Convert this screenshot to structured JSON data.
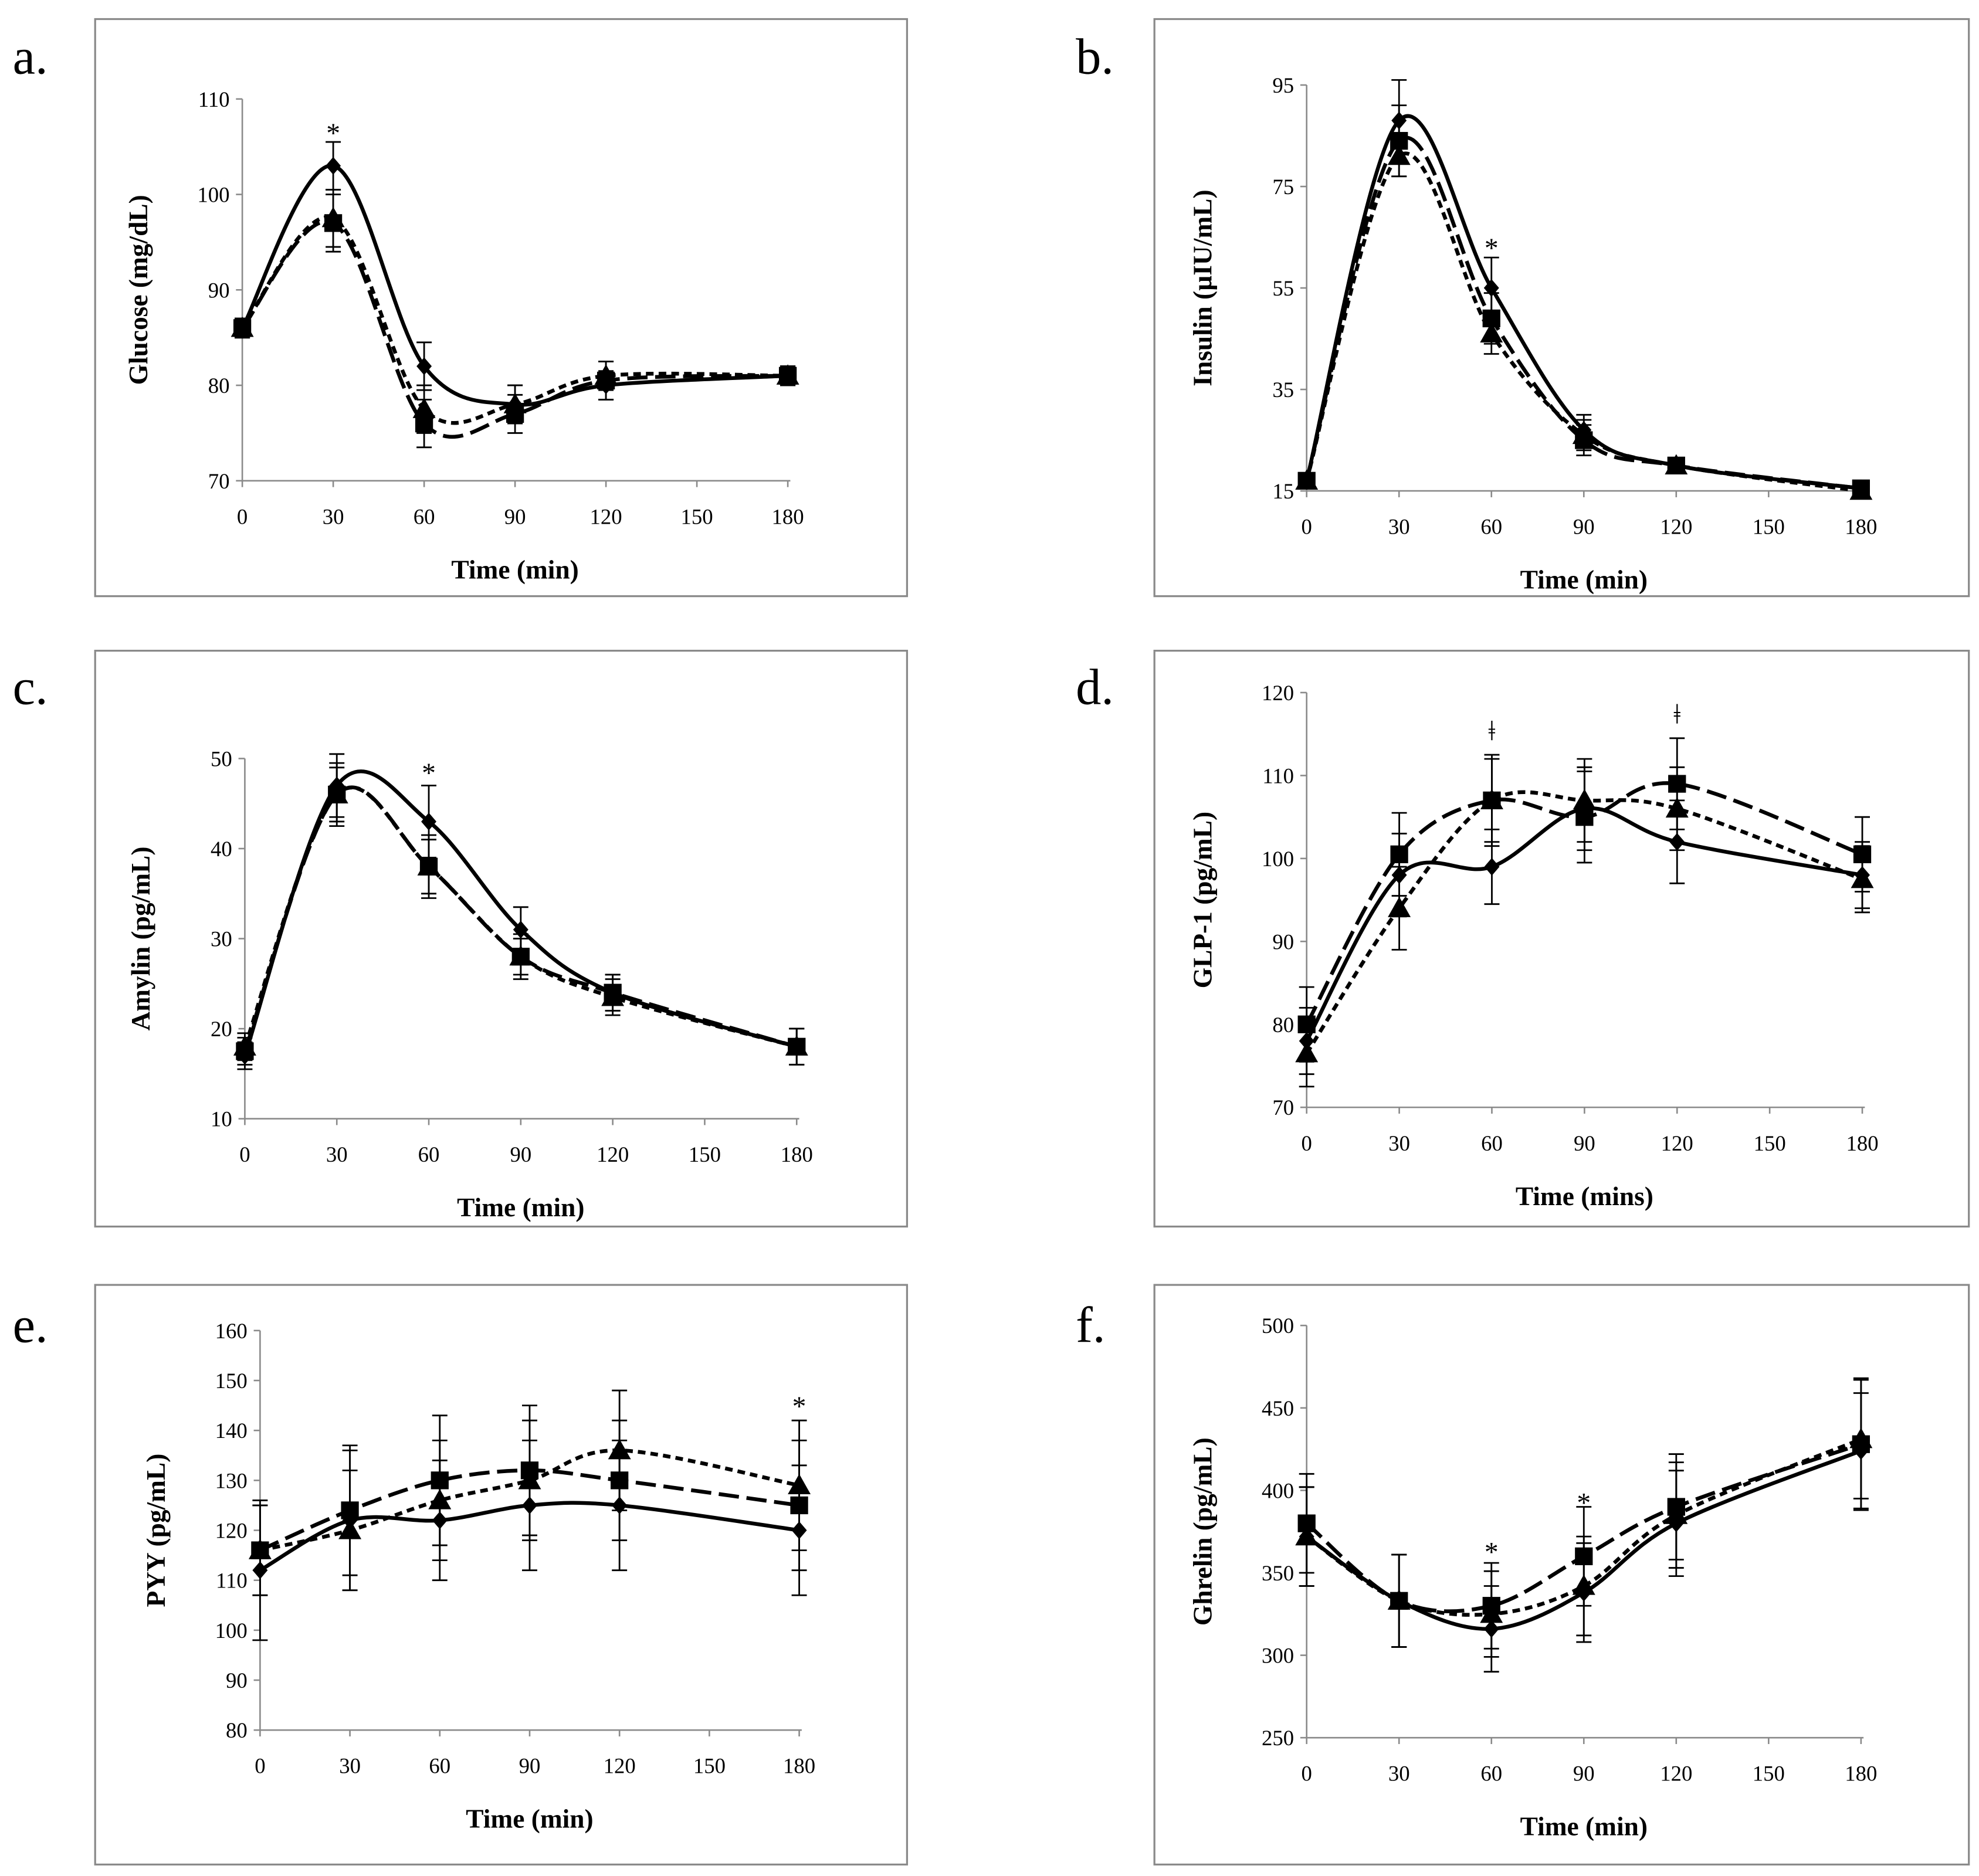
{
  "chart_data": [
    {
      "type": "line",
      "panel_label": "a.",
      "ylabel": "Glucose (mg/dL)",
      "xlabel": "Time (min)",
      "ylim": [
        70,
        110
      ],
      "yticks": [
        70,
        80,
        90,
        100,
        110
      ],
      "xticks": [
        0,
        30,
        60,
        90,
        120,
        150,
        180
      ],
      "x": [
        0,
        30,
        60,
        90,
        120,
        180
      ],
      "series": [
        {
          "marker": "diamond",
          "dash": "solid",
          "values": [
            86,
            103,
            82,
            78,
            80,
            81
          ],
          "err": [
            1,
            2.5,
            2.5,
            2,
            1.5,
            1
          ]
        },
        {
          "marker": "square",
          "dash": "long",
          "values": [
            86,
            97,
            76,
            77,
            80.5,
            81
          ],
          "err": [
            1,
            3,
            2.5,
            2,
            2,
            1
          ]
        },
        {
          "marker": "triangle",
          "dash": "short",
          "values": [
            86,
            97.5,
            77.5,
            78,
            81,
            81
          ],
          "err": [
            1,
            3,
            2.5,
            2,
            1.5,
            1
          ]
        }
      ],
      "annotations": [
        {
          "x": 30,
          "y": 106.5,
          "text": "*"
        }
      ]
    },
    {
      "type": "line",
      "panel_label": "b.",
      "ylabel": "Insulin (µIU/mL)",
      "xlabel": "Time (min)",
      "ylim": [
        15,
        95
      ],
      "yticks": [
        15,
        35,
        55,
        75,
        95
      ],
      "xticks": [
        0,
        30,
        60,
        90,
        120,
        150,
        180
      ],
      "x": [
        0,
        30,
        60,
        90,
        120,
        180
      ],
      "series": [
        {
          "marker": "diamond",
          "dash": "solid",
          "values": [
            17,
            88,
            55,
            27,
            20,
            15.5
          ],
          "err": [
            1,
            8,
            6,
            3,
            1,
            1
          ]
        },
        {
          "marker": "square",
          "dash": "long",
          "values": [
            17,
            84,
            49,
            25,
            20,
            15.5
          ],
          "err": [
            1,
            7,
            5,
            3,
            1,
            1
          ]
        },
        {
          "marker": "triangle",
          "dash": "short",
          "values": [
            17,
            81,
            46,
            26,
            20,
            15
          ],
          "err": [
            1,
            4,
            4,
            3,
            1,
            1
          ]
        }
      ],
      "annotations": [
        {
          "x": 60,
          "y": 63,
          "text": "*"
        }
      ]
    },
    {
      "type": "line",
      "panel_label": "c.",
      "ylabel": "Amylin (pg/mL)",
      "xlabel": "Time (min)",
      "ylim": [
        10,
        50
      ],
      "yticks": [
        10,
        20,
        30,
        40,
        50
      ],
      "xticks": [
        0,
        30,
        60,
        90,
        120,
        150,
        180
      ],
      "x": [
        0,
        30,
        60,
        90,
        120,
        180
      ],
      "series": [
        {
          "marker": "diamond",
          "dash": "solid",
          "values": [
            17,
            47,
            43,
            31,
            24,
            18
          ],
          "err": [
            1.5,
            3.5,
            4,
            2.5,
            2,
            2
          ]
        },
        {
          "marker": "square",
          "dash": "long",
          "values": [
            17.5,
            46,
            38,
            28,
            24,
            18
          ],
          "err": [
            1.5,
            3.5,
            3.5,
            2.5,
            2,
            2
          ]
        },
        {
          "marker": "triangle",
          "dash": "short",
          "values": [
            18,
            46,
            38,
            28,
            23.5,
            18
          ],
          "err": [
            1.5,
            3,
            3,
            2,
            2,
            2
          ]
        }
      ],
      "annotations": [
        {
          "x": 60,
          "y": 48.5,
          "text": "*"
        }
      ]
    },
    {
      "type": "line",
      "panel_label": "d.",
      "ylabel": "GLP-1 (pg/mL)",
      "xlabel": "Time (mins)",
      "ylim": [
        70,
        120
      ],
      "yticks": [
        70,
        80,
        90,
        100,
        110,
        120
      ],
      "xticks": [
        0,
        30,
        60,
        90,
        120,
        150,
        180
      ],
      "x": [
        0,
        30,
        60,
        90,
        120,
        180
      ],
      "series": [
        {
          "marker": "diamond",
          "dash": "solid",
          "values": [
            78,
            98,
            99,
            106,
            102,
            98
          ],
          "err": [
            4,
            5,
            4.5,
            5,
            5,
            4
          ]
        },
        {
          "marker": "square",
          "dash": "long",
          "values": [
            80,
            100.5,
            107,
            105,
            109,
            100.5
          ],
          "err": [
            4.5,
            5,
            5.5,
            5.5,
            5.5,
            4.5
          ]
        },
        {
          "marker": "triangle",
          "dash": "short",
          "values": [
            76.5,
            94,
            107,
            107,
            106,
            97.5
          ],
          "err": [
            4,
            5,
            5,
            5,
            5,
            4
          ]
        }
      ],
      "annotations": [
        {
          "x": 60,
          "y": 115.5,
          "text": "ǂ"
        },
        {
          "x": 120,
          "y": 117.5,
          "text": "ǂ"
        }
      ]
    },
    {
      "type": "line",
      "panel_label": "e.",
      "ylabel": "PYY (pg/mL)",
      "xlabel": "Time (min)",
      "ylim": [
        80,
        160
      ],
      "yticks": [
        80,
        90,
        100,
        110,
        120,
        130,
        140,
        150,
        160
      ],
      "xticks": [
        0,
        30,
        60,
        90,
        120,
        150,
        180
      ],
      "x": [
        0,
        30,
        60,
        90,
        120,
        180
      ],
      "series": [
        {
          "marker": "diamond",
          "dash": "solid",
          "values": [
            112,
            122,
            122,
            125,
            125,
            120
          ],
          "err": [
            14,
            14,
            12,
            13,
            13,
            13
          ]
        },
        {
          "marker": "square",
          "dash": "long",
          "values": [
            116,
            124,
            130,
            132,
            130,
            125
          ],
          "err": [
            9,
            13,
            13,
            13,
            12,
            13
          ]
        },
        {
          "marker": "triangle",
          "dash": "short",
          "values": [
            116,
            120,
            126,
            130,
            136,
            129
          ],
          "err": [
            9,
            12,
            12,
            12,
            12,
            13
          ]
        }
      ],
      "annotations": [
        {
          "x": 180,
          "y": 145,
          "text": "*"
        }
      ]
    },
    {
      "type": "line",
      "panel_label": "f.",
      "ylabel": "Ghrelin (pg/mL)",
      "xlabel": "Time (min)",
      "ylim": [
        250,
        500
      ],
      "yticks": [
        250,
        300,
        350,
        400,
        450,
        500
      ],
      "xticks": [
        0,
        30,
        60,
        90,
        120,
        150,
        180
      ],
      "x": [
        0,
        30,
        60,
        90,
        120,
        180
      ],
      "series": [
        {
          "marker": "diamond",
          "dash": "solid",
          "values": [
            372,
            333,
            316,
            338,
            380,
            424
          ],
          "err": [
            30,
            28,
            26,
            30,
            32,
            35
          ]
        },
        {
          "marker": "square",
          "dash": "long",
          "values": [
            380,
            333,
            330,
            360,
            390,
            428
          ],
          "err": [
            30,
            28,
            26,
            30,
            32,
            40
          ]
        },
        {
          "marker": "triangle",
          "dash": "short",
          "values": [
            372,
            333,
            325,
            342,
            385,
            431
          ],
          "err": [
            30,
            28,
            26,
            30,
            32,
            36
          ]
        }
      ],
      "annotations": [
        {
          "x": 60,
          "y": 363,
          "text": "*"
        },
        {
          "x": 90,
          "y": 393,
          "text": "*"
        }
      ]
    }
  ]
}
